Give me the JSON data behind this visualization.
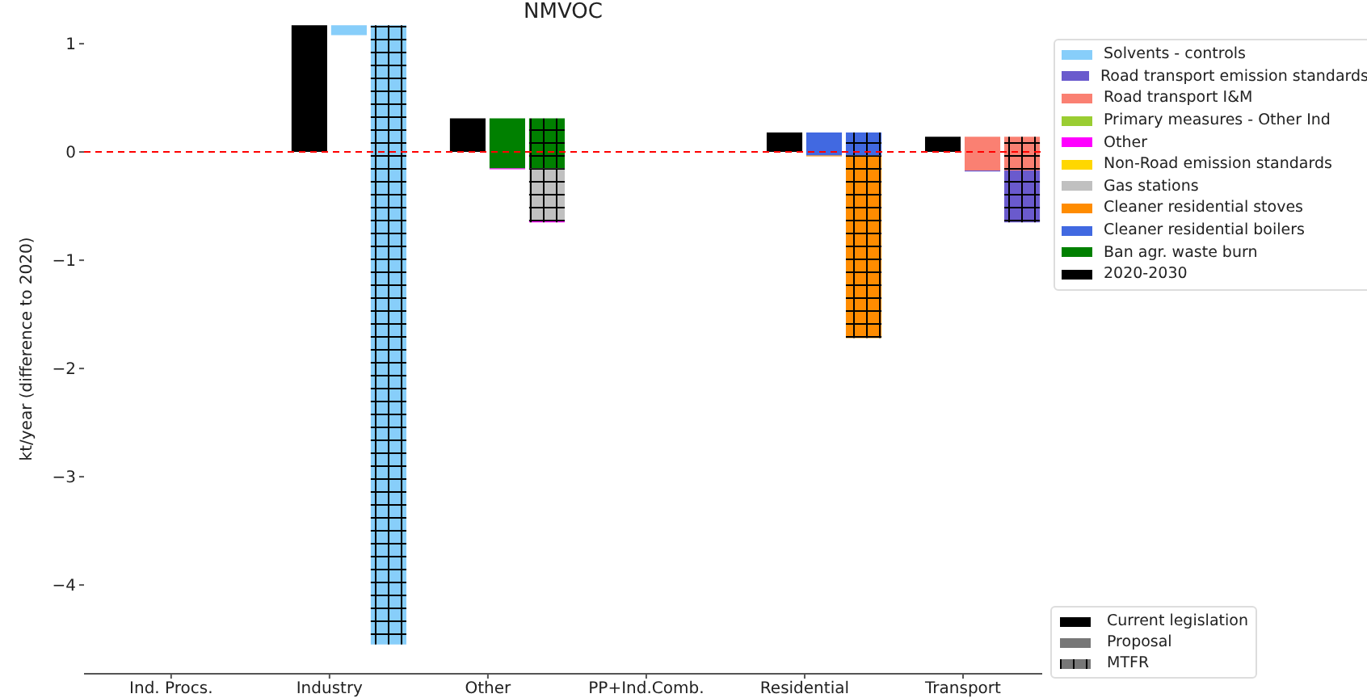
{
  "chart_data": {
    "type": "bar",
    "title": "NMVOC",
    "ylabel": "kt/year (difference to 2020)",
    "categories": [
      "Ind. Procs.",
      "Industry",
      "Other",
      "PP+Ind.Comb.",
      "Residential",
      "Transport"
    ],
    "ylim": [
      -4.82,
      1.18
    ],
    "yticks": [
      {
        "value": -4,
        "label": "−4"
      },
      {
        "value": -3,
        "label": "−3"
      },
      {
        "value": -2,
        "label": "−2"
      },
      {
        "value": -1,
        "label": "−1"
      },
      0,
      1
    ],
    "ref_lines": [
      {
        "axis": "y",
        "value": 0,
        "color": "#ff0000",
        "line_style": "dashed"
      }
    ],
    "legend": "top right",
    "annotations": [
      "Current legislation",
      "Proposal",
      "MTFR"
    ],
    "series": [
      {
        "name": "Solvents - controls",
        "color": "#87cefa",
        "base": [
          null,
          1.17,
          null,
          null,
          null,
          null
        ],
        "values": [
          null,
          -0.09,
          null,
          null,
          null,
          null
        ]
      },
      {
        "name": "Road transport emission standards",
        "color": "#6a5acd",
        "base": [
          null,
          null,
          null,
          null,
          null,
          -0.17
        ],
        "values": [
          null,
          null,
          null,
          null,
          null,
          -0.01
        ]
      },
      {
        "name": "Road transport I&M",
        "color": "#fa8072",
        "base": [
          null,
          null,
          null,
          null,
          null,
          0.14
        ],
        "values": [
          null,
          null,
          null,
          null,
          null,
          -0.31
        ]
      },
      {
        "name": "Primary measures - Other Ind",
        "color": "#9acd32",
        "values": [
          null,
          null,
          null,
          null,
          null,
          null
        ]
      },
      {
        "name": "Other",
        "color": "#ff00ff",
        "base": [
          null,
          null,
          -0.15,
          null,
          null,
          null
        ],
        "values": [
          null,
          null,
          -0.01,
          null,
          null,
          null
        ]
      },
      {
        "name": "Non-Road emission standards",
        "color": "#ffd700",
        "values": [
          null,
          null,
          null,
          null,
          null,
          null
        ]
      },
      {
        "name": "Gas stations",
        "color": "#c0c0c0",
        "values": [
          null,
          null,
          null,
          null,
          null,
          null
        ]
      },
      {
        "name": "Cleaner residential stoves",
        "color": "#ff8c00",
        "base": [
          null,
          null,
          null,
          null,
          -0.03,
          null
        ],
        "values": [
          null,
          null,
          null,
          null,
          -0.01,
          null
        ]
      },
      {
        "name": "Cleaner residential boilers",
        "color": "#4169e1",
        "base": [
          null,
          null,
          null,
          null,
          0.18,
          null
        ],
        "values": [
          null,
          null,
          null,
          null,
          -0.21,
          null
        ]
      },
      {
        "name": "Ban agr. waste burn",
        "color": "#008000",
        "base": [
          null,
          null,
          0.31,
          null,
          null,
          null
        ],
        "values": [
          null,
          null,
          -0.46,
          null,
          null,
          null
        ]
      },
      {
        "name": "2020-2030",
        "color": "#000000",
        "values": [
          0,
          1.17,
          0.31,
          0,
          0.18,
          0.14
        ]
      },
      {
        "color": "#87cefa",
        "base": [
          null,
          1.17,
          null,
          null,
          null,
          null
        ],
        "values": [
          null,
          -5.72,
          null,
          null,
          null,
          null
        ]
      },
      {
        "color": "#008000",
        "base": [
          null,
          null,
          0.31,
          null,
          null,
          null
        ],
        "values": [
          null,
          null,
          -0.46,
          null,
          null,
          null
        ]
      },
      {
        "color": "#c0c0c0",
        "base": [
          null,
          null,
          -0.15,
          null,
          null,
          null
        ],
        "values": [
          null,
          null,
          -0.49,
          null,
          null,
          null
        ]
      },
      {
        "color": "#ff00ff",
        "base": [
          null,
          null,
          -0.64,
          null,
          null,
          null
        ],
        "values": [
          null,
          null,
          -0.01,
          null,
          null,
          null
        ]
      },
      {
        "color": "#4169e1",
        "base": [
          null,
          null,
          null,
          null,
          0.18,
          null
        ],
        "values": [
          null,
          null,
          null,
          null,
          -0.21,
          null
        ]
      },
      {
        "color": "#ff8c00",
        "base": [
          null,
          null,
          null,
          null,
          -0.03,
          null
        ],
        "values": [
          null,
          null,
          null,
          null,
          -1.69,
          null
        ]
      },
      {
        "color": "#fa8072",
        "base": [
          null,
          null,
          null,
          null,
          null,
          0.14
        ],
        "values": [
          null,
          null,
          null,
          null,
          null,
          -0.31
        ]
      },
      {
        "color": "#6a5acd",
        "base": [
          null,
          null,
          null,
          null,
          null,
          -0.17
        ],
        "values": [
          null,
          null,
          null,
          null,
          null,
          -0.48
        ]
      }
    ]
  }
}
